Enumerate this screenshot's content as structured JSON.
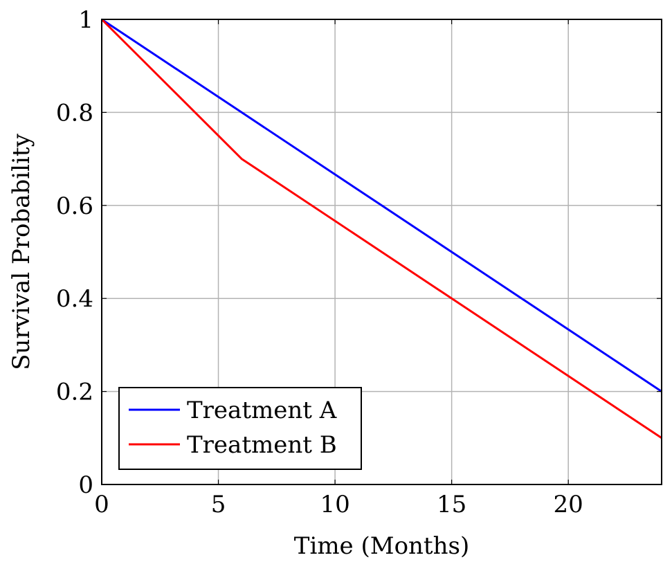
{
  "chart_data": {
    "type": "line",
    "title": "",
    "xlabel": "Time (Months)",
    "ylabel": "Survival Probability",
    "xlim": [
      0,
      24
    ],
    "ylim": [
      0,
      1
    ],
    "xticks": [
      0,
      5,
      10,
      15,
      20
    ],
    "xtick_labels": [
      "0",
      "5",
      "10",
      "15",
      "20"
    ],
    "yticks": [
      0,
      0.2,
      0.4,
      0.6,
      0.8,
      1
    ],
    "ytick_labels": [
      "0",
      "0.2",
      "0.4",
      "0.6",
      "0.8",
      "1"
    ],
    "grid": true,
    "legend_position": "bottom-left",
    "series": [
      {
        "name": "Treatment A",
        "color": "#0000ff",
        "x": [
          0,
          6,
          12,
          18,
          24
        ],
        "values": [
          1.0,
          0.8,
          0.6,
          0.4,
          0.2
        ]
      },
      {
        "name": "Treatment B",
        "color": "#ff0000",
        "x": [
          0,
          6,
          12,
          18,
          24
        ],
        "values": [
          1.0,
          0.7,
          0.5,
          0.3,
          0.1
        ]
      }
    ]
  }
}
